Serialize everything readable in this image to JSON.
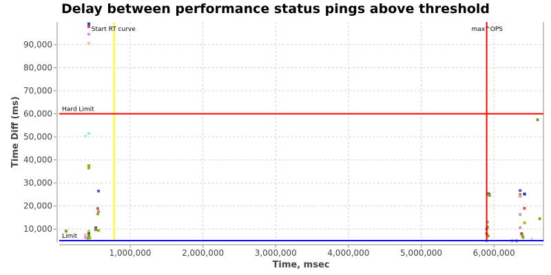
{
  "chart_data": {
    "type": "scatter",
    "title": "Delay between performance status pings above threshold",
    "xlabel": "Time, msec",
    "ylabel": "Time Diff (ms)",
    "xlim": [
      25000,
      6680000
    ],
    "ylim": [
      4400,
      99800
    ],
    "grid": true,
    "xticks": [
      1000000,
      2000000,
      3000000,
      4000000,
      5000000,
      6000000
    ],
    "xtick_labels": [
      "1,000,000",
      "2,000,000",
      "3,000,000",
      "4,000,000",
      "5,000,000",
      "6,000,000"
    ],
    "yticks": [
      10000,
      20000,
      30000,
      40000,
      50000,
      60000,
      70000,
      80000,
      90000
    ],
    "ytick_labels": [
      "10,000",
      "20,000",
      "30,000",
      "40,000",
      "50,000",
      "60,000",
      "70,000",
      "80,000",
      "90,000"
    ],
    "annotations": [
      {
        "label": "Start RT curve",
        "axis": "x",
        "value": 780000,
        "color": "#ffff00"
      },
      {
        "label": "max^OPS",
        "axis": "x",
        "value": 5900000,
        "color": "#ff0000"
      },
      {
        "label": "Hard Limit",
        "axis": "y",
        "value": 60000,
        "color": "#ff0000"
      },
      {
        "label": "Limit",
        "axis": "y",
        "value": 5000,
        "color": "#0000ff"
      }
    ],
    "points": [
      {
        "x": 432000,
        "y": 99000,
        "color": "#3333cc"
      },
      {
        "x": 432000,
        "y": 97800,
        "color": "#dd4444"
      },
      {
        "x": 432000,
        "y": 94500,
        "color": "#ee88ee"
      },
      {
        "x": 432000,
        "y": 90600,
        "color": "#ffbbbb"
      },
      {
        "x": 384000,
        "y": 50300,
        "color": "#aaeeee"
      },
      {
        "x": 432000,
        "y": 51500,
        "color": "#88eeee"
      },
      {
        "x": 432000,
        "y": 37500,
        "color": "#66cc00"
      },
      {
        "x": 432000,
        "y": 36500,
        "color": "#99aa22"
      },
      {
        "x": 565000,
        "y": 26500,
        "color": "#5555cc"
      },
      {
        "x": 555000,
        "y": 18900,
        "color": "#dd5555"
      },
      {
        "x": 565000,
        "y": 17500,
        "color": "#aa88aa"
      },
      {
        "x": 555000,
        "y": 16600,
        "color": "#88bb22"
      },
      {
        "x": 120000,
        "y": 9100,
        "color": "#889922"
      },
      {
        "x": 384000,
        "y": 7600,
        "color": "#ffbbbb"
      },
      {
        "x": 384000,
        "y": 6400,
        "color": "#ee88ee"
      },
      {
        "x": 432000,
        "y": 9000,
        "color": "#aacc33"
      },
      {
        "x": 432000,
        "y": 8000,
        "color": "#336633"
      },
      {
        "x": 432000,
        "y": 7300,
        "color": "#44aa44"
      },
      {
        "x": 420000,
        "y": 6000,
        "color": "#88aa00"
      },
      {
        "x": 445000,
        "y": 6200,
        "color": "#aaaa00"
      },
      {
        "x": 527000,
        "y": 10600,
        "color": "#5555dd"
      },
      {
        "x": 527000,
        "y": 9700,
        "color": "#889900"
      },
      {
        "x": 565000,
        "y": 9400,
        "color": "#aaaa22"
      },
      {
        "x": 5930000,
        "y": 25200,
        "color": "#333399"
      },
      {
        "x": 5910000,
        "y": 25500,
        "color": "#889922"
      },
      {
        "x": 5940000,
        "y": 24600,
        "color": "#66bb22"
      },
      {
        "x": 5910000,
        "y": 13000,
        "color": "#999999"
      },
      {
        "x": 5910000,
        "y": 10900,
        "color": "#66aa22"
      },
      {
        "x": 5900000,
        "y": 10000,
        "color": "#dd4444"
      },
      {
        "x": 5900000,
        "y": 8000,
        "color": "#aa6622"
      },
      {
        "x": 5920000,
        "y": 7000,
        "color": "#88aa00"
      },
      {
        "x": 6360000,
        "y": 26700,
        "color": "#5555dd"
      },
      {
        "x": 6360000,
        "y": 25000,
        "color": "#88aa00"
      },
      {
        "x": 6360000,
        "y": 24200,
        "color": "#ee88ee"
      },
      {
        "x": 6420000,
        "y": 25200,
        "color": "#2222aa"
      },
      {
        "x": 6420000,
        "y": 19000,
        "color": "#dd5555"
      },
      {
        "x": 6360000,
        "y": 16300,
        "color": "#aaaaaa"
      },
      {
        "x": 6420000,
        "y": 12700,
        "color": "#99cc11"
      },
      {
        "x": 6360000,
        "y": 10600,
        "color": "#aaaaaa"
      },
      {
        "x": 6630000,
        "y": 14500,
        "color": "#88aa00"
      },
      {
        "x": 6380000,
        "y": 8000,
        "color": "#aa4444"
      },
      {
        "x": 6390000,
        "y": 7200,
        "color": "#99aa00"
      },
      {
        "x": 6400000,
        "y": 6400,
        "color": "#88aa00"
      },
      {
        "x": 6520000,
        "y": 5800,
        "color": "#ffcccc"
      },
      {
        "x": 6250000,
        "y": 4900,
        "color": "#aaaaaa"
      },
      {
        "x": 6310000,
        "y": 4900,
        "color": "#888888"
      },
      {
        "x": 6600000,
        "y": 57400,
        "color": "#889922"
      }
    ]
  }
}
